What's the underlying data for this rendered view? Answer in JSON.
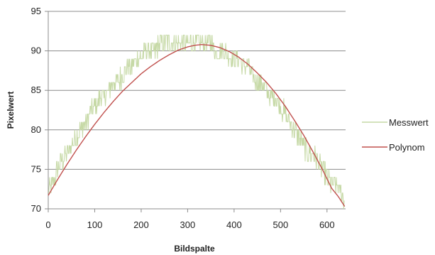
{
  "chart_data": {
    "type": "line",
    "title": "",
    "xlabel": "Bildspalte",
    "ylabel": "Pixelwert",
    "xlim": [
      0,
      640
    ],
    "ylim": [
      70,
      95
    ],
    "x_ticks": [
      0,
      100,
      200,
      300,
      400,
      500,
      600
    ],
    "y_ticks": [
      70,
      75,
      80,
      85,
      90,
      95
    ],
    "grid": "horizontal",
    "legend_position": "right",
    "series": [
      {
        "name": "Messwert",
        "color": "#c6d9a6",
        "style": "noisy",
        "x": [
          0,
          10,
          20,
          30,
          40,
          50,
          60,
          70,
          80,
          90,
          100,
          110,
          120,
          130,
          140,
          150,
          160,
          170,
          180,
          190,
          200,
          210,
          220,
          230,
          240,
          250,
          260,
          270,
          280,
          290,
          300,
          310,
          320,
          330,
          340,
          350,
          360,
          370,
          380,
          390,
          400,
          410,
          420,
          430,
          440,
          450,
          460,
          470,
          480,
          490,
          500,
          510,
          520,
          530,
          540,
          550,
          560,
          570,
          580,
          590,
          600,
          610,
          620,
          630,
          638
        ],
        "y": [
          72,
          73,
          75,
          76,
          77,
          78,
          79,
          80,
          81,
          82,
          83,
          84,
          84,
          85,
          86,
          86,
          87,
          88,
          88,
          89,
          89,
          90,
          90,
          90,
          91,
          91,
          91,
          91,
          91,
          91,
          91,
          91,
          91,
          91,
          91,
          91,
          90,
          90,
          90,
          89,
          89,
          89,
          88,
          88,
          87,
          86,
          86,
          85,
          84,
          84,
          83,
          82,
          81,
          80,
          79,
          78,
          77,
          77,
          76,
          75,
          74,
          73,
          73,
          72,
          71
        ]
      },
      {
        "name": "Polynom",
        "color": "#c0504d",
        "style": "smooth",
        "x": [
          0,
          20,
          40,
          60,
          80,
          100,
          120,
          140,
          160,
          180,
          200,
          220,
          240,
          260,
          280,
          300,
          315,
          330,
          350,
          370,
          390,
          410,
          430,
          450,
          470,
          490,
          510,
          530,
          550,
          570,
          590,
          610,
          625,
          638
        ],
        "y": [
          71.7,
          73.7,
          75.6,
          77.4,
          79.1,
          80.7,
          82.2,
          83.6,
          84.9,
          86.0,
          87.1,
          88.0,
          88.8,
          89.5,
          90.1,
          90.5,
          90.7,
          90.8,
          90.7,
          90.4,
          89.9,
          89.2,
          88.3,
          87.2,
          86.0,
          84.6,
          83.0,
          81.2,
          79.3,
          77.2,
          75.0,
          72.6,
          71.5,
          70.3
        ]
      }
    ]
  }
}
